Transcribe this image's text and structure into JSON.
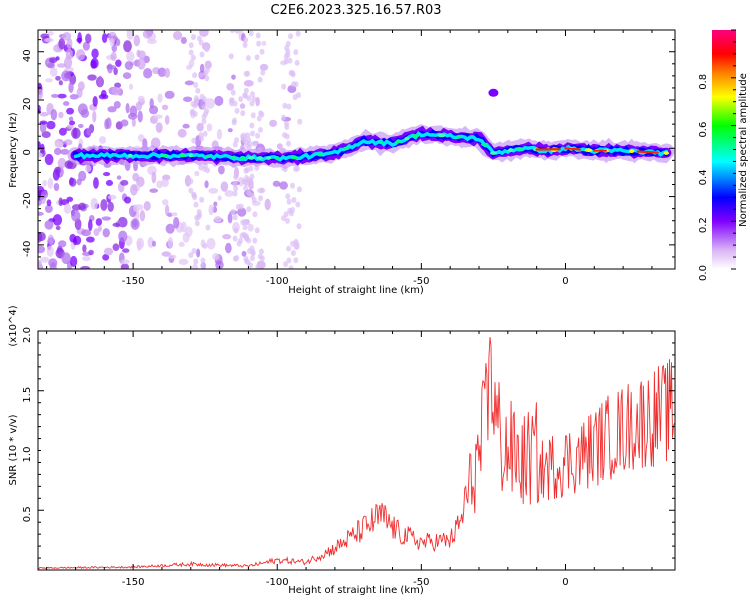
{
  "title": "C2E6.2023.325.16.57.R03",
  "chart_data": [
    {
      "type": "heatmap",
      "xlabel": "Height of straight line (km)",
      "ylabel": "Frequency (Hz)",
      "xlim": [
        -183,
        38
      ],
      "ylim": [
        -50,
        49
      ],
      "x_ticks": [
        -150,
        -100,
        -50,
        0
      ],
      "y_ticks": [
        -40,
        -20,
        0,
        20,
        40
      ],
      "colorbar": {
        "label": "Normalized spectral amplitude",
        "range": [
          0,
          1
        ],
        "ticks": [
          0.0,
          0.2,
          0.4,
          0.6,
          0.8
        ],
        "colors": [
          "#ffffff",
          "#d9b3f5",
          "#8000ff",
          "#0000ff",
          "#00ffff",
          "#00ff00",
          "#ffff00",
          "#ff8000",
          "#ff0000",
          "#ff0080"
        ]
      },
      "ridge": [
        {
          "x": -170,
          "y": -3
        },
        {
          "x": -150,
          "y": -3
        },
        {
          "x": -130,
          "y": -3
        },
        {
          "x": -110,
          "y": -4
        },
        {
          "x": -95,
          "y": -4
        },
        {
          "x": -80,
          "y": -2
        },
        {
          "x": -70,
          "y": 3
        },
        {
          "x": -60,
          "y": 2
        },
        {
          "x": -50,
          "y": 6
        },
        {
          "x": -40,
          "y": 5
        },
        {
          "x": -30,
          "y": 4
        },
        {
          "x": -25,
          "y": -2
        },
        {
          "x": -15,
          "y": 0
        },
        {
          "x": -5,
          "y": -1
        },
        {
          "x": 0,
          "y": 0
        },
        {
          "x": 10,
          "y": -1
        },
        {
          "x": 20,
          "y": -1
        },
        {
          "x": 35,
          "y": -2
        }
      ]
    },
    {
      "type": "line",
      "xlabel": "Height of straight line (km)",
      "ylabel": "SNR (10 * v/v)",
      "y_multiplier": "(x10^4)",
      "xlim": [
        -183,
        38
      ],
      "ylim": [
        0,
        2.0
      ],
      "x_ticks": [
        -150,
        -100,
        -50,
        0
      ],
      "y_ticks": [
        0.5,
        1.0,
        1.5,
        2.0
      ],
      "series": [
        {
          "color": "#f03030",
          "envelope": [
            {
              "x": -183,
              "y": 0.02
            },
            {
              "x": -150,
              "y": 0.03
            },
            {
              "x": -130,
              "y": 0.06
            },
            {
              "x": -110,
              "y": 0.04
            },
            {
              "x": -100,
              "y": 0.1
            },
            {
              "x": -90,
              "y": 0.08
            },
            {
              "x": -80,
              "y": 0.22
            },
            {
              "x": -70,
              "y": 0.42
            },
            {
              "x": -64,
              "y": 0.55
            },
            {
              "x": -58,
              "y": 0.38
            },
            {
              "x": -50,
              "y": 0.28
            },
            {
              "x": -40,
              "y": 0.3
            },
            {
              "x": -35,
              "y": 0.55
            },
            {
              "x": -30,
              "y": 0.95
            },
            {
              "x": -26,
              "y": 1.4
            },
            {
              "x": -22,
              "y": 1.05
            },
            {
              "x": -15,
              "y": 0.9
            },
            {
              "x": -5,
              "y": 1.05
            },
            {
              "x": 5,
              "y": 1.15
            },
            {
              "x": 15,
              "y": 1.35
            },
            {
              "x": 25,
              "y": 1.5
            },
            {
              "x": 38,
              "y": 1.63
            }
          ]
        }
      ]
    }
  ]
}
